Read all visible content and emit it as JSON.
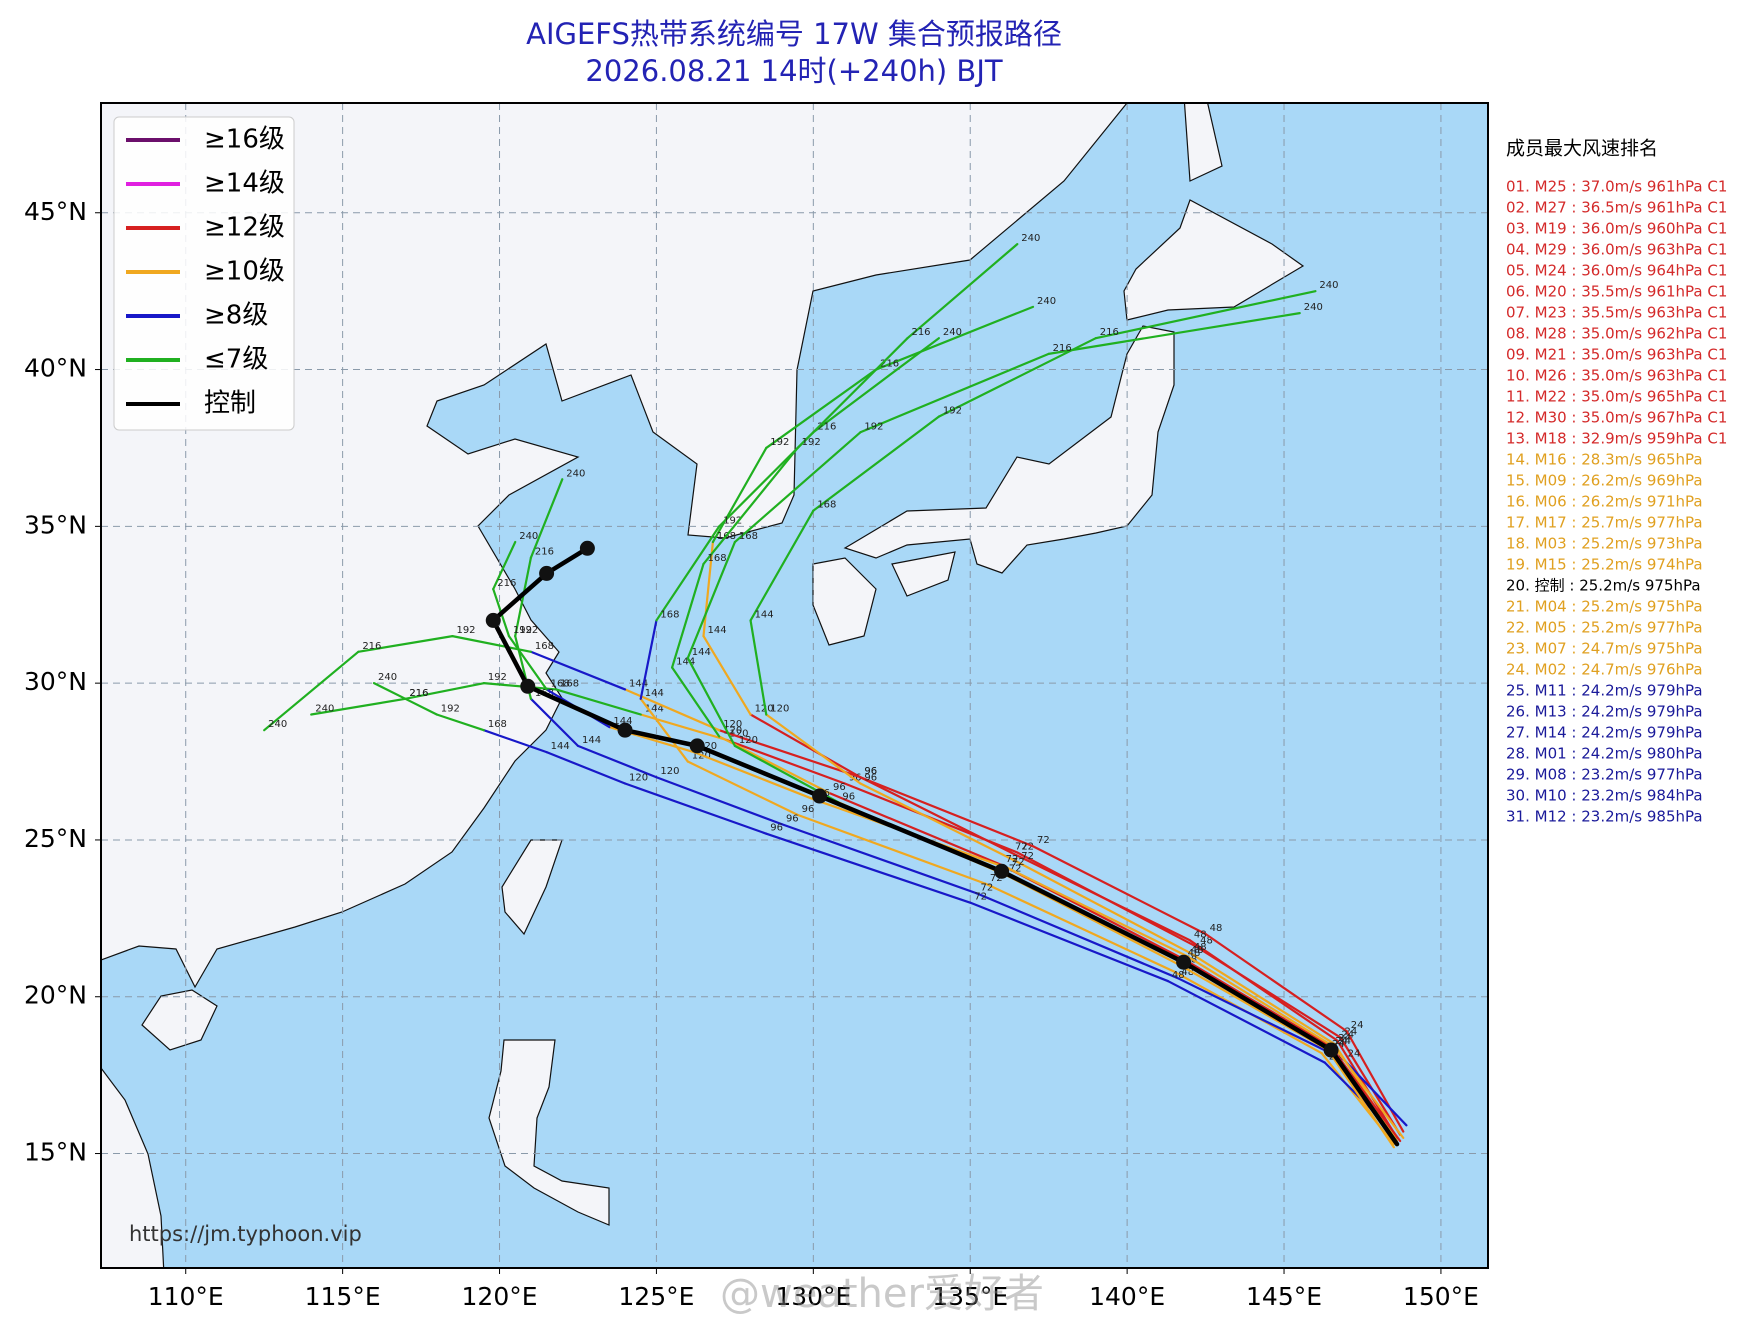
{
  "title": "AIGEFS热带系统编号 17W 集合预报路径",
  "subtitle": "2026.08.21 14时(+240h) BJT",
  "source": "https://jm.typhoon.vip",
  "watermark": "@weather爱好者",
  "map": {
    "lonlim": [
      107.3,
      151.5
    ],
    "latlim": [
      11.35,
      48.5
    ],
    "lonticks": [
      {
        "value": 110,
        "label": "110°E"
      },
      {
        "value": 115,
        "label": "115°E"
      },
      {
        "value": 120,
        "label": "120°E"
      },
      {
        "value": 125,
        "label": "125°E"
      },
      {
        "value": 130,
        "label": "130°E"
      },
      {
        "value": 135,
        "label": "135°E"
      },
      {
        "value": 140,
        "label": "140°E"
      },
      {
        "value": 145,
        "label": "145°E"
      },
      {
        "value": 150,
        "label": "150°E"
      }
    ],
    "latticks": [
      {
        "value": 15,
        "label": "15°N"
      },
      {
        "value": 20,
        "label": "20°N"
      },
      {
        "value": 25,
        "label": "25°N"
      },
      {
        "value": 30,
        "label": "30°N"
      },
      {
        "value": 35,
        "label": "35°N"
      },
      {
        "value": 40,
        "label": "40°N"
      },
      {
        "value": 45,
        "label": "45°N"
      }
    ],
    "grid": true
  },
  "legend": [
    {
      "label": "≥16级",
      "color": "#6b0f6b"
    },
    {
      "label": "≥14级",
      "color": "#e020e0"
    },
    {
      "label": "≥12级",
      "color": "#d62020"
    },
    {
      "label": "≥10级",
      "color": "#f0a820"
    },
    {
      "label": "≥8级",
      "color": "#1818c8"
    },
    {
      "label": "≤7级",
      "color": "#20b020"
    },
    {
      "label": "控制",
      "color": "#000000"
    }
  ],
  "hours": [
    0,
    24,
    48,
    72,
    96,
    120,
    144,
    168,
    192,
    216,
    240
  ],
  "tracks": [
    {
      "lon": [
        148.7,
        146.8,
        142.2,
        136.5,
        131.0,
        127.2,
        124.5,
        121.8,
        119.5,
        117.0,
        114.0
      ],
      "lat": [
        15.6,
        18.7,
        21.6,
        24.6,
        26.8,
        28.2,
        29.0,
        29.8,
        30.0,
        29.5,
        29.0
      ],
      "levels": [
        2,
        2,
        2,
        2,
        2,
        3,
        5,
        5,
        5,
        5,
        5
      ]
    },
    {
      "lon": [
        148.8,
        147.0,
        142.5,
        137.0,
        131.5,
        127.0,
        124.0,
        121.0,
        118.5,
        115.5,
        112.5
      ],
      "lat": [
        15.7,
        18.9,
        22.0,
        24.8,
        27.0,
        28.5,
        29.8,
        31.0,
        31.5,
        31.0,
        28.5
      ],
      "levels": [
        2,
        2,
        2,
        2,
        2,
        3,
        4,
        5,
        5,
        5,
        5
      ]
    },
    {
      "lon": [
        148.6,
        146.7,
        142.0,
        136.3,
        131.5,
        128.0,
        126.5,
        126.8,
        128.5,
        132.0,
        137.0
      ],
      "lat": [
        15.5,
        18.6,
        21.8,
        24.6,
        27.0,
        29.0,
        31.5,
        34.5,
        37.5,
        40.0,
        42.0
      ],
      "levels": [
        2,
        2,
        2,
        2,
        2,
        3,
        3,
        5,
        5,
        5,
        5
      ]
    },
    {
      "lon": [
        148.5,
        146.2,
        141.5,
        135.5,
        129.5,
        126.0,
        124.5,
        125.0,
        127.0,
        130.0,
        134.0
      ],
      "lat": [
        15.3,
        18.2,
        20.8,
        23.6,
        25.8,
        27.5,
        29.5,
        32.0,
        35.0,
        38.0,
        41.0
      ],
      "levels": [
        3,
        3,
        3,
        3,
        3,
        3,
        4,
        5,
        5,
        5,
        5
      ]
    },
    {
      "lon": [
        148.9,
        146.9,
        141.6,
        135.2,
        129.0,
        125.0,
        122.5,
        121.0,
        120.5,
        121.0,
        122.0
      ],
      "lat": [
        15.9,
        18.0,
        20.6,
        23.3,
        25.5,
        27.0,
        28.0,
        29.5,
        31.5,
        34.0,
        36.5
      ],
      "levels": [
        4,
        4,
        4,
        4,
        4,
        4,
        4,
        5,
        5,
        5,
        5
      ]
    },
    {
      "lon": [
        148.4,
        146.3,
        141.3,
        135.0,
        128.5,
        124.0,
        121.5,
        119.5,
        118.0,
        117.0,
        116.0
      ],
      "lat": [
        15.8,
        17.9,
        20.5,
        23.0,
        25.2,
        26.8,
        27.8,
        28.5,
        29.0,
        29.5,
        30.0
      ],
      "levels": [
        4,
        4,
        4,
        4,
        4,
        4,
        4,
        5,
        5,
        5,
        5
      ]
    },
    {
      "lon": [
        148.6,
        146.6,
        142.0,
        136.5,
        131.5,
        128.5,
        128.0,
        130.0,
        134.0,
        139.0,
        146.0
      ],
      "lat": [
        15.4,
        18.5,
        21.4,
        24.3,
        26.8,
        29.0,
        32.0,
        35.5,
        38.5,
        41.0,
        42.5
      ],
      "levels": [
        3,
        3,
        3,
        3,
        3,
        5,
        5,
        5,
        5,
        5,
        5
      ]
    },
    {
      "lon": [
        148.7,
        146.5,
        141.8,
        136.0,
        130.5,
        127.0,
        125.5,
        126.5,
        129.5,
        133.0,
        136.5
      ],
      "lat": [
        15.4,
        18.4,
        21.2,
        24.2,
        26.5,
        28.3,
        30.5,
        33.8,
        37.5,
        41.0,
        44.0
      ],
      "levels": [
        2,
        2,
        2,
        2,
        3,
        5,
        5,
        5,
        5,
        5,
        5
      ]
    },
    {
      "lon": [
        148.5,
        146.4,
        141.7,
        136.1,
        130.8,
        127.5,
        126.0,
        127.5,
        131.5,
        137.5,
        145.5
      ],
      "lat": [
        15.2,
        18.3,
        21.0,
        23.9,
        26.2,
        28.0,
        30.8,
        34.5,
        38.0,
        40.5,
        41.8
      ],
      "levels": [
        3,
        3,
        3,
        3,
        5,
        5,
        5,
        5,
        5,
        5,
        5
      ]
    },
    {
      "lon": [
        148.8,
        146.6,
        141.9,
        136.2,
        130.0,
        126.2,
        123.5,
        121.5,
        120.3,
        119.8,
        120.5
      ],
      "lat": [
        15.5,
        18.4,
        21.3,
        24.1,
        26.3,
        27.8,
        28.6,
        29.8,
        31.5,
        33.0,
        34.5
      ],
      "levels": [
        3,
        3,
        3,
        3,
        3,
        3,
        4,
        5,
        5,
        5,
        5
      ]
    }
  ],
  "control": {
    "lon": [
      148.6,
      146.5,
      141.8,
      136.0,
      130.2,
      126.3,
      124.0,
      120.9,
      119.8,
      121.5,
      122.8
    ],
    "lat": [
      15.3,
      18.3,
      21.1,
      24.0,
      26.4,
      28.0,
      28.5,
      29.9,
      32.0,
      33.5,
      34.3
    ],
    "levels": [
      6,
      6,
      6,
      6,
      6,
      6,
      6,
      6,
      6,
      6,
      6
    ]
  },
  "ranking_title": "成员最大风速排名",
  "ranking": [
    {
      "text": "01. M25 : 37.0m/s 961hPa C1",
      "color": "#d42a2a"
    },
    {
      "text": "02. M27 : 36.5m/s 961hPa C1",
      "color": "#d42a2a"
    },
    {
      "text": "03. M19 : 36.0m/s 960hPa C1",
      "color": "#d42a2a"
    },
    {
      "text": "04. M29 : 36.0m/s 963hPa C1",
      "color": "#d42a2a"
    },
    {
      "text": "05. M24 : 36.0m/s 964hPa C1",
      "color": "#d42a2a"
    },
    {
      "text": "06. M20 : 35.5m/s 961hPa C1",
      "color": "#d42a2a"
    },
    {
      "text": "07. M23 : 35.5m/s 963hPa C1",
      "color": "#d42a2a"
    },
    {
      "text": "08. M28 : 35.0m/s 962hPa C1",
      "color": "#d42a2a"
    },
    {
      "text": "09. M21 : 35.0m/s 963hPa C1",
      "color": "#d42a2a"
    },
    {
      "text": "10. M26 : 35.0m/s 963hPa C1",
      "color": "#d42a2a"
    },
    {
      "text": "11. M22 : 35.0m/s 965hPa C1",
      "color": "#d42a2a"
    },
    {
      "text": "12. M30 : 35.0m/s 967hPa C1",
      "color": "#d42a2a"
    },
    {
      "text": "13. M18 : 32.9m/s 959hPa C1",
      "color": "#d42a2a"
    },
    {
      "text": "14. M16 : 28.3m/s 965hPa",
      "color": "#e0a020"
    },
    {
      "text": "15. M09 : 26.2m/s 969hPa",
      "color": "#e0a020"
    },
    {
      "text": "16. M06 : 26.2m/s 971hPa",
      "color": "#e0a020"
    },
    {
      "text": "17. M17 : 25.7m/s 977hPa",
      "color": "#e0a020"
    },
    {
      "text": "18. M03 : 25.2m/s 973hPa",
      "color": "#e0a020"
    },
    {
      "text": "19. M15 : 25.2m/s 974hPa",
      "color": "#e0a020"
    },
    {
      "text": "20. 控制 : 25.2m/s 975hPa",
      "color": "#000000"
    },
    {
      "text": "21. M04 : 25.2m/s 975hPa",
      "color": "#e0a020"
    },
    {
      "text": "22. M05 : 25.2m/s 977hPa",
      "color": "#e0a020"
    },
    {
      "text": "23. M07 : 24.7m/s 975hPa",
      "color": "#e0a020"
    },
    {
      "text": "24. M02 : 24.7m/s 976hPa",
      "color": "#e0a020"
    },
    {
      "text": "25. M11 : 24.2m/s 979hPa",
      "color": "#1a1a9a"
    },
    {
      "text": "26. M13 : 24.2m/s 979hPa",
      "color": "#1a1a9a"
    },
    {
      "text": "27. M14 : 24.2m/s 979hPa",
      "color": "#1a1a9a"
    },
    {
      "text": "28. M01 : 24.2m/s 980hPa",
      "color": "#1a1a9a"
    },
    {
      "text": "29. M08 : 23.2m/s 977hPa",
      "color": "#1a1a9a"
    },
    {
      "text": "30. M10 : 23.2m/s 984hPa",
      "color": "#1a1a9a"
    },
    {
      "text": "31. M12 : 23.2m/s 985hPa",
      "color": "#1a1a9a"
    }
  ]
}
